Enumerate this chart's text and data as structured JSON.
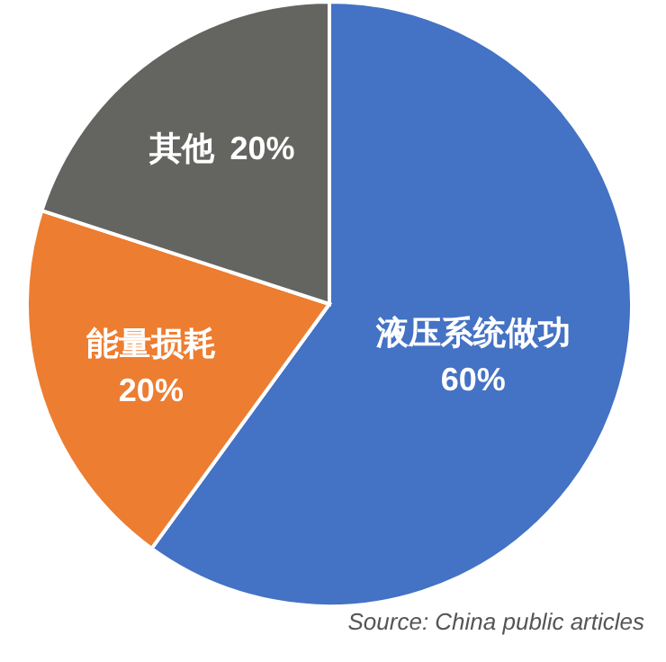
{
  "chart_data": {
    "type": "pie",
    "categories": [
      "液压系统做功",
      "能量损耗",
      "其他"
    ],
    "values": [
      60,
      20,
      20
    ],
    "colors": [
      "#4472c4",
      "#ed7d31",
      "#646461"
    ],
    "value_labels": [
      "60%",
      "20%",
      "20%"
    ],
    "annotations": [
      "Source: China public articles"
    ]
  }
}
